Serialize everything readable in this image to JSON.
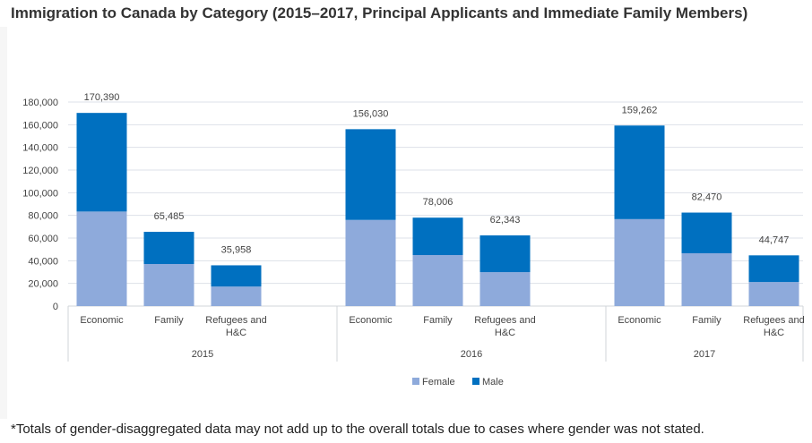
{
  "chart_data": {
    "type": "bar",
    "stacked": true,
    "title": "Immigration to Canada by Category (2015–2017, Principal Applicants and Immediate Family Members)",
    "footnote": "*Totals of gender-disaggregated data may not add up to the overall totals due to cases where gender was not stated.",
    "groups": [
      {
        "year": "2015",
        "categories": [
          "Economic",
          "Family",
          "Refugees and H&C"
        ],
        "totals": [
          "170,390",
          "65,485",
          "35,958"
        ],
        "female": [
          83400,
          37100,
          17200
        ],
        "male": [
          86990,
          28385,
          18758
        ]
      },
      {
        "year": "2016",
        "categories": [
          "Economic",
          "Family",
          "Refugees and H&C"
        ],
        "totals": [
          "156,030",
          "78,006",
          "62,343"
        ],
        "female": [
          76000,
          45000,
          29900
        ],
        "male": [
          80030,
          33006,
          32443
        ]
      },
      {
        "year": "2017",
        "categories": [
          "Economic",
          "Family",
          "Refugees and H&C"
        ],
        "totals": [
          "159,262",
          "82,470",
          "44,747"
        ],
        "female": [
          76700,
          46600,
          21200
        ],
        "male": [
          82562,
          35870,
          23547
        ]
      }
    ],
    "series": [
      {
        "name": "Female",
        "color": "#8eaadb"
      },
      {
        "name": "Male",
        "color": "#0070c0"
      }
    ],
    "yticks": [
      "0",
      "20,000",
      "40,000",
      "60,000",
      "80,000",
      "100,000",
      "120,000",
      "140,000",
      "160,000",
      "180,000"
    ],
    "ylim": [
      0,
      180000
    ],
    "grid": true,
    "legend": "bottom-center"
  }
}
